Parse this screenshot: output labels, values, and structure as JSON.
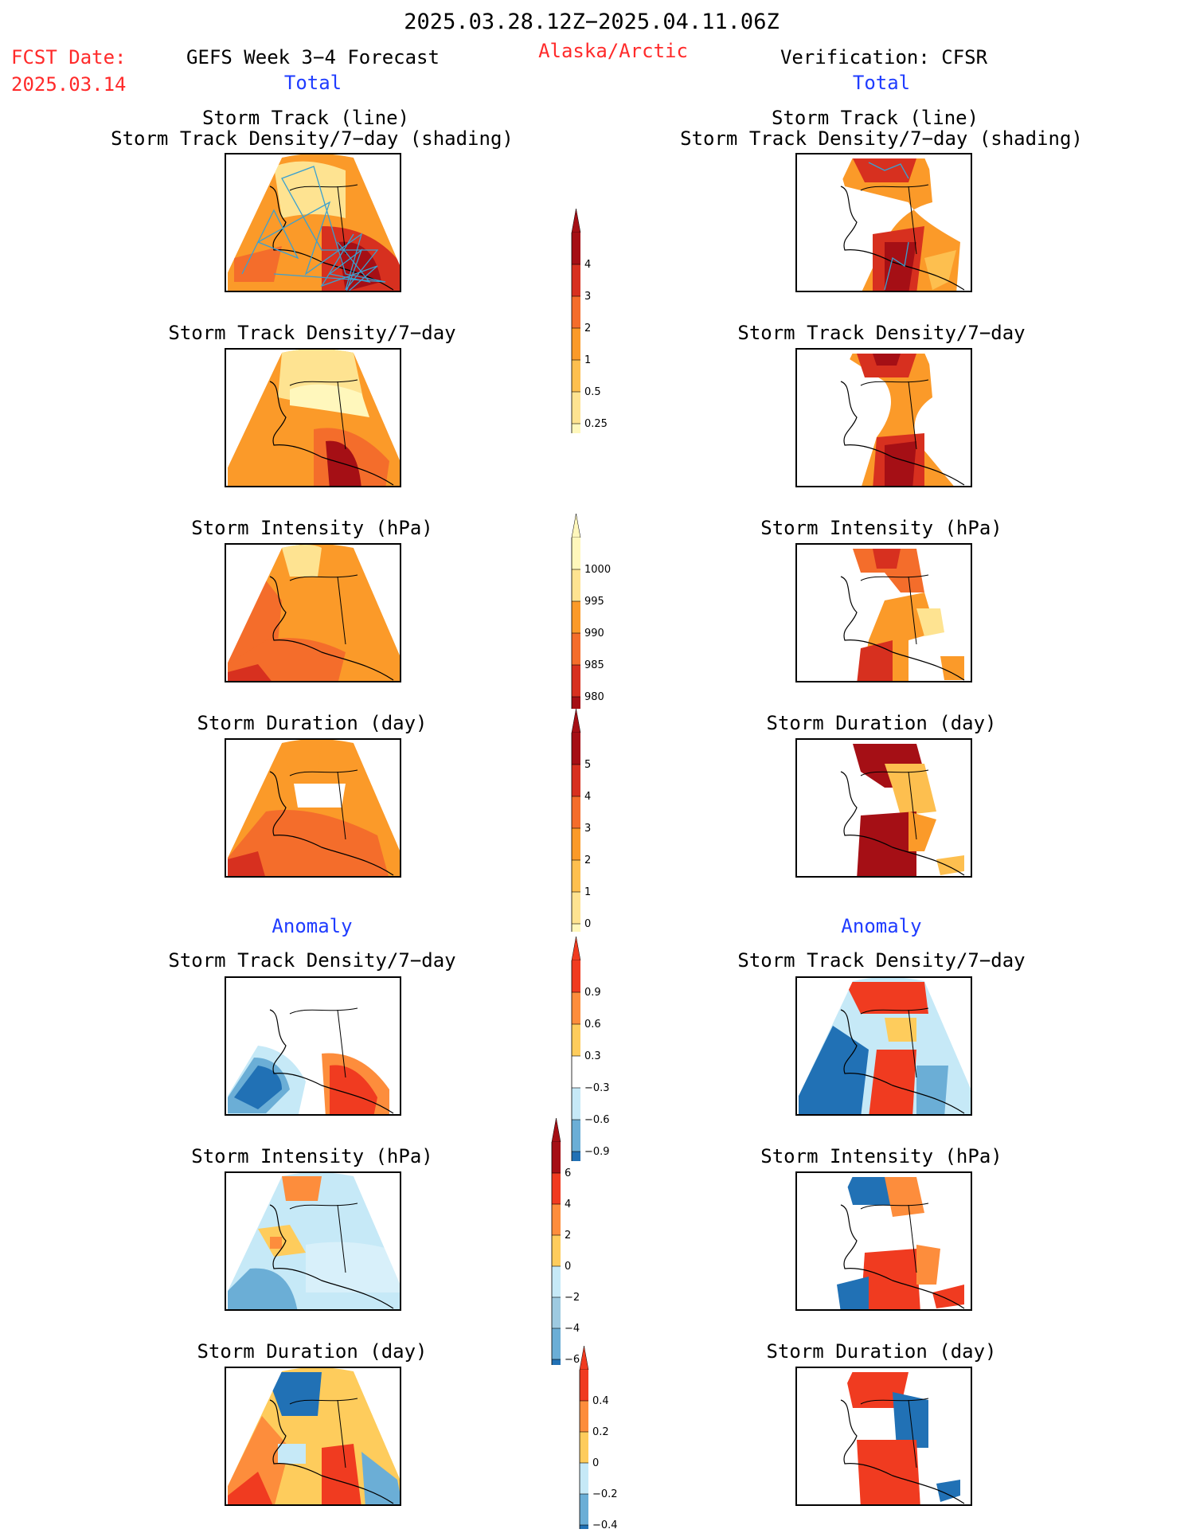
{
  "header": {
    "date_range": "2025.03.28.12Z−2025.04.11.06Z",
    "fcst_label": "FCST Date:",
    "fcst_date": "2025.03.14",
    "left_title": "GEFS Week 3−4 Forecast",
    "region": "Alaska/Arctic",
    "right_title": "Verification: CFSR",
    "left_sub": "Total",
    "right_sub": "Total",
    "anomaly_left": "Anomaly",
    "anomaly_right": "Anomaly"
  },
  "panel_titles": {
    "track_line": "Storm Track (line)",
    "track_density_shading": "Storm Track Density/7−day (shading)",
    "density": "Storm Track Density/7−day",
    "intensity": "Storm Intensity (hPa)",
    "duration": "Storm Duration (day)"
  },
  "colorbars": {
    "density": {
      "labels": [
        "4",
        "3",
        "2",
        "1",
        "0.5",
        "0.25"
      ],
      "colors": [
        "#a50f15",
        "#d7301f",
        "#f46d2b",
        "#fb9a29",
        "#fdbf4f",
        "#fee391",
        "#fff7bc"
      ]
    },
    "intensity": {
      "labels": [
        "1000",
        "995",
        "990",
        "985",
        "980"
      ],
      "colors": [
        "#fff7bc",
        "#fee391",
        "#fb9a29",
        "#f46d2b",
        "#d7301f",
        "#a50f15"
      ]
    },
    "duration": {
      "labels": [
        "5",
        "4",
        "3",
        "2",
        "1",
        "0"
      ],
      "colors": [
        "#a50f15",
        "#d7301f",
        "#f46d2b",
        "#fb9a29",
        "#fdbf4f",
        "#fee391",
        "#fff7bc"
      ]
    },
    "anom_density": {
      "labels": [
        "0.9",
        "0.6",
        "0.3",
        "−0.3",
        "−0.6",
        "−0.9"
      ],
      "colors": [
        "#f03b20",
        "#fd8d3c",
        "#fecc5c",
        "#ffffff",
        "#c6e9f7",
        "#6baed6",
        "#2171b5"
      ]
    },
    "anom_intensity": {
      "labels": [
        "6",
        "4",
        "2",
        "0",
        "−2",
        "−4",
        "−6"
      ],
      "colors": [
        "#a50f15",
        "#f03b20",
        "#fd8d3c",
        "#fecc5c",
        "#c6e9f7",
        "#9ecae1",
        "#6baed6",
        "#2171b5"
      ]
    },
    "anom_duration": {
      "labels": [
        "0.4",
        "0.2",
        "0",
        "−0.2",
        "−0.4"
      ],
      "colors": [
        "#f03b20",
        "#fd8d3c",
        "#fecc5c",
        "#c6e9f7",
        "#6baed6",
        "#2171b5"
      ]
    }
  },
  "map_colors": {
    "dark_red": "#a50f15",
    "red": "#d7301f",
    "orange_red": "#f46d2b",
    "orange": "#fb9a29",
    "light_orange": "#fdbf4f",
    "yellow": "#fee391",
    "pale": "#fff7bc",
    "anom_red": "#f03b20",
    "anom_orange": "#fd8d3c",
    "anom_yellow": "#fecc5c",
    "anom_light_blue": "#c6e9f7",
    "anom_mid_blue": "#6baed6",
    "anom_blue": "#2171b5",
    "track_line": "#3aa0d0"
  }
}
